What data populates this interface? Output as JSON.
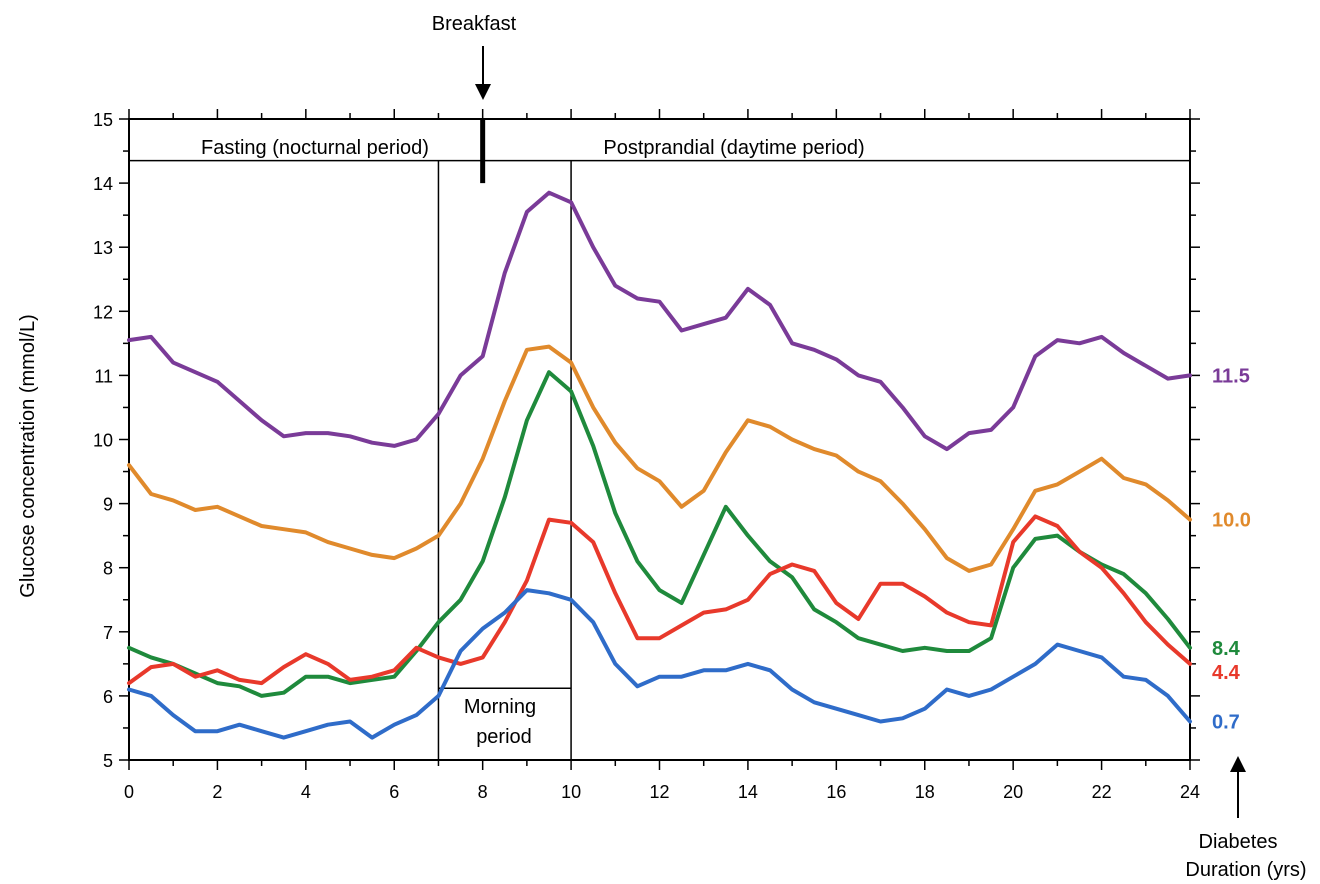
{
  "chart_data": {
    "type": "line",
    "ylabel": "Glucose concentration (mmol/L)",
    "xlim": [
      0,
      24
    ],
    "ylim": [
      5,
      15
    ],
    "x_ticks": [
      "0",
      "2",
      "4",
      "6",
      "8",
      "10",
      "12",
      "14",
      "16",
      "18",
      "20",
      "22",
      "24"
    ],
    "y_ticks": [
      "5",
      "6",
      "7",
      "8",
      "9",
      "10",
      "11",
      "12",
      "13",
      "14",
      "15"
    ],
    "grid": false,
    "annotations": {
      "breakfast": "Breakfast",
      "fasting": "Fasting (nocturnal period)",
      "postprandial": "Postprandial (daytime period)",
      "morning_line1": "Morning",
      "morning_line2": "period",
      "duration_line1": "Diabetes",
      "duration_line2": "Duration (yrs)"
    },
    "events": {
      "breakfast_hour": 8,
      "morning_period": [
        7,
        10
      ]
    },
    "series": [
      {
        "name": "11.5",
        "color": "#7a3b98",
        "x": [
          0,
          0.5,
          1,
          1.5,
          2,
          2.5,
          3,
          3.5,
          4,
          4.5,
          5,
          5.5,
          6,
          6.5,
          7,
          7.5,
          8,
          8.5,
          9,
          9.5,
          10,
          10.5,
          11,
          11.5,
          12,
          12.5,
          13,
          13.5,
          14,
          14.5,
          15,
          15.5,
          16,
          16.5,
          17,
          17.5,
          18,
          18.5,
          19,
          19.5,
          20,
          20.5,
          21,
          21.5,
          22,
          22.5,
          23,
          23.5,
          24
        ],
        "y": [
          11.55,
          11.6,
          11.2,
          11.05,
          10.9,
          10.6,
          10.3,
          10.05,
          10.1,
          10.1,
          10.05,
          9.95,
          9.9,
          10.0,
          10.4,
          11.0,
          11.3,
          12.6,
          13.55,
          13.85,
          13.7,
          13.0,
          12.4,
          12.2,
          12.15,
          11.7,
          11.8,
          11.9,
          12.35,
          12.1,
          11.5,
          11.4,
          11.25,
          11.0,
          10.9,
          10.5,
          10.05,
          9.85,
          10.1,
          10.15,
          10.5,
          11.3,
          11.55,
          11.5,
          11.6,
          11.35,
          11.15,
          10.95,
          11.0
        ]
      },
      {
        "name": "10.0",
        "color": "#e08a2c",
        "x": [
          0,
          0.5,
          1,
          1.5,
          2,
          2.5,
          3,
          3.5,
          4,
          4.5,
          5,
          5.5,
          6,
          6.5,
          7,
          7.5,
          8,
          8.5,
          9,
          9.5,
          10,
          10.5,
          11,
          11.5,
          12,
          12.5,
          13,
          13.5,
          14,
          14.5,
          15,
          15.5,
          16,
          16.5,
          17,
          17.5,
          18,
          18.5,
          19,
          19.5,
          20,
          20.5,
          21,
          21.5,
          22,
          22.5,
          23,
          23.5,
          24
        ],
        "y": [
          9.6,
          9.15,
          9.05,
          8.9,
          8.95,
          8.8,
          8.65,
          8.6,
          8.55,
          8.4,
          8.3,
          8.2,
          8.15,
          8.3,
          8.5,
          9.0,
          9.7,
          10.6,
          11.4,
          11.45,
          11.2,
          10.5,
          9.95,
          9.55,
          9.35,
          8.95,
          9.2,
          9.8,
          10.3,
          10.2,
          10.0,
          9.85,
          9.75,
          9.5,
          9.35,
          9.0,
          8.6,
          8.15,
          7.95,
          8.05,
          8.6,
          9.2,
          9.3,
          9.5,
          9.7,
          9.4,
          9.3,
          9.05,
          8.75
        ]
      },
      {
        "name": "8.4",
        "color": "#1f8a3c",
        "x": [
          0,
          0.5,
          1,
          1.5,
          2,
          2.5,
          3,
          3.5,
          4,
          4.5,
          5,
          5.5,
          6,
          6.5,
          7,
          7.5,
          8,
          8.5,
          9,
          9.5,
          10,
          10.5,
          11,
          11.5,
          12,
          12.5,
          13,
          13.5,
          14,
          14.5,
          15,
          15.5,
          16,
          16.5,
          17,
          17.5,
          18,
          18.5,
          19,
          19.5,
          20,
          20.5,
          21,
          21.5,
          22,
          22.5,
          23,
          23.5,
          24
        ],
        "y": [
          6.75,
          6.6,
          6.5,
          6.35,
          6.2,
          6.15,
          6.0,
          6.05,
          6.3,
          6.3,
          6.2,
          6.25,
          6.3,
          6.7,
          7.15,
          7.5,
          8.1,
          9.1,
          10.3,
          11.05,
          10.75,
          9.9,
          8.85,
          8.1,
          7.65,
          7.45,
          8.2,
          8.95,
          8.5,
          8.1,
          7.85,
          7.35,
          7.15,
          6.9,
          6.8,
          6.7,
          6.75,
          6.7,
          6.7,
          6.9,
          8.0,
          8.45,
          8.5,
          8.25,
          8.05,
          7.9,
          7.6,
          7.2,
          6.75
        ]
      },
      {
        "name": "4.4",
        "color": "#e8392b",
        "x": [
          0,
          0.5,
          1,
          1.5,
          2,
          2.5,
          3,
          3.5,
          4,
          4.5,
          5,
          5.5,
          6,
          6.5,
          7,
          7.5,
          8,
          8.5,
          9,
          9.5,
          10,
          10.5,
          11,
          11.5,
          12,
          12.5,
          13,
          13.5,
          14,
          14.5,
          15,
          15.5,
          16,
          16.5,
          17,
          17.5,
          18,
          18.5,
          19,
          19.5,
          20,
          20.5,
          21,
          21.5,
          22,
          22.5,
          23,
          23.5,
          24
        ],
        "y": [
          6.2,
          6.45,
          6.5,
          6.3,
          6.4,
          6.25,
          6.2,
          6.45,
          6.65,
          6.5,
          6.25,
          6.3,
          6.4,
          6.75,
          6.6,
          6.5,
          6.6,
          7.15,
          7.8,
          8.75,
          8.7,
          8.4,
          7.6,
          6.9,
          6.9,
          7.1,
          7.3,
          7.35,
          7.5,
          7.9,
          8.05,
          7.95,
          7.45,
          7.2,
          7.75,
          7.75,
          7.55,
          7.3,
          7.15,
          7.1,
          8.4,
          8.8,
          8.65,
          8.25,
          8.0,
          7.6,
          7.15,
          6.8,
          6.5
        ]
      },
      {
        "name": "0.7",
        "color": "#2f6cc9",
        "x": [
          0,
          0.5,
          1,
          1.5,
          2,
          2.5,
          3,
          3.5,
          4,
          4.5,
          5,
          5.5,
          6,
          6.5,
          7,
          7.5,
          8,
          8.5,
          9,
          9.5,
          10,
          10.5,
          11,
          11.5,
          12,
          12.5,
          13,
          13.5,
          14,
          14.5,
          15,
          15.5,
          16,
          16.5,
          17,
          17.5,
          18,
          18.5,
          19,
          19.5,
          20,
          20.5,
          21,
          21.5,
          22,
          22.5,
          23,
          23.5,
          24
        ],
        "y": [
          6.1,
          6.0,
          5.7,
          5.45,
          5.45,
          5.55,
          5.45,
          5.35,
          5.45,
          5.55,
          5.6,
          5.35,
          5.55,
          5.7,
          6.0,
          6.7,
          7.05,
          7.3,
          7.65,
          7.6,
          7.5,
          7.15,
          6.5,
          6.15,
          6.3,
          6.3,
          6.4,
          6.4,
          6.5,
          6.4,
          6.1,
          5.9,
          5.8,
          5.7,
          5.6,
          5.65,
          5.8,
          6.1,
          6.0,
          6.1,
          6.3,
          6.5,
          6.8,
          6.7,
          6.6,
          6.3,
          6.25,
          6.0,
          5.6
        ]
      }
    ]
  }
}
